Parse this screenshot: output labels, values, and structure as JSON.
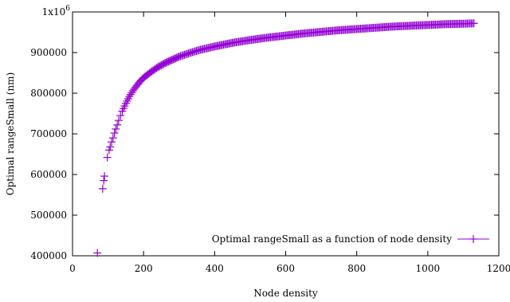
{
  "chart_data": {
    "type": "scatter",
    "title": "",
    "xlabel": "Node density",
    "ylabel": "Optimal rangeSmall (nm)",
    "xlim": [
      0,
      1200
    ],
    "ylim": [
      400000,
      1000000
    ],
    "x_ticks": [
      0,
      200,
      400,
      600,
      800,
      1000,
      1200
    ],
    "x_tick_labels": [
      "0",
      "200",
      "400",
      "600",
      "800",
      "1000",
      "1200"
    ],
    "y_ticks": [
      400000,
      500000,
      600000,
      700000,
      800000,
      900000,
      1000000
    ],
    "y_tick_labels": [
      "400000",
      "500000",
      "600000",
      "700000",
      "800000",
      "900000",
      "1x10"
    ],
    "y_top_exponent": "6",
    "grid": false,
    "legend": {
      "position": "bottom-right"
    },
    "series": [
      {
        "name": "Optimal rangeSmall as a function of node density",
        "color": "#9400d3",
        "marker": "plus",
        "points": [
          [
            70,
            407000
          ],
          [
            85,
            565000
          ],
          [
            88,
            585000
          ],
          [
            90,
            596000
          ],
          [
            98,
            642000
          ],
          [
            103,
            660000
          ],
          [
            106,
            668000
          ],
          [
            110,
            680000
          ],
          [
            114,
            690000
          ],
          [
            118,
            702000
          ],
          [
            122,
            712000
          ],
          [
            126,
            722000
          ],
          [
            130,
            733000
          ],
          [
            135,
            745000
          ],
          [
            140,
            756000
          ],
          [
            150,
            775000
          ],
          [
            160,
            792000
          ],
          [
            170,
            806000
          ],
          [
            180,
            818000
          ],
          [
            190,
            829000
          ],
          [
            200,
            838000
          ],
          [
            220,
            852000
          ],
          [
            240,
            864000
          ],
          [
            260,
            874000
          ],
          [
            280,
            882000
          ],
          [
            300,
            890000
          ],
          [
            330,
            899000
          ],
          [
            360,
            907000
          ],
          [
            400,
            915000
          ],
          [
            450,
            924000
          ],
          [
            500,
            931000
          ],
          [
            550,
            937000
          ],
          [
            600,
            942000
          ],
          [
            650,
            947000
          ],
          [
            700,
            951000
          ],
          [
            750,
            955000
          ],
          [
            800,
            958000
          ],
          [
            850,
            961000
          ],
          [
            900,
            964000
          ],
          [
            950,
            966000
          ],
          [
            1000,
            968000
          ],
          [
            1050,
            970000
          ],
          [
            1100,
            971000
          ],
          [
            1130,
            972000
          ]
        ]
      }
    ]
  }
}
